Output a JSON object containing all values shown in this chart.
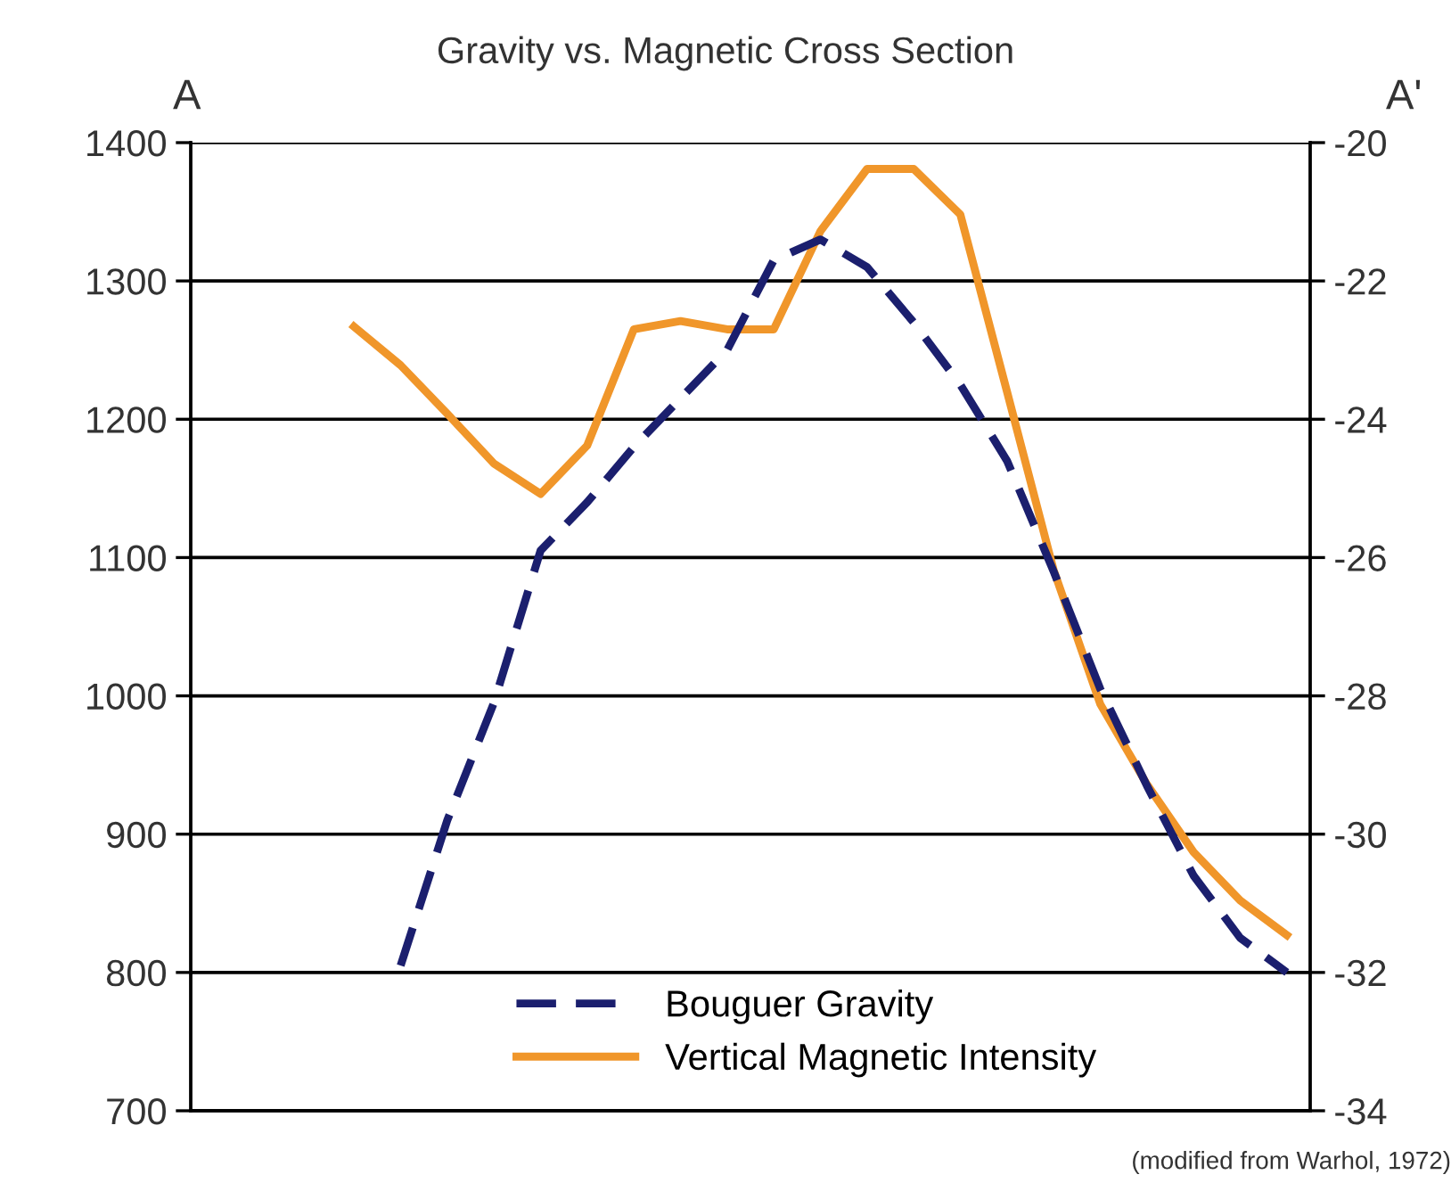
{
  "chart_data": {
    "type": "line",
    "title": "Gravity vs. Magnetic Cross Section",
    "categories": [
      null,
      null,
      null,
      null,
      null,
      null,
      null,
      null,
      null,
      null,
      null,
      null,
      null,
      null,
      null,
      null,
      null,
      null,
      null,
      null,
      null,
      null,
      null,
      null
    ],
    "series": [
      {
        "name": "Bouguer Gravity",
        "color": "#1b1f6e",
        "axis": "y2",
        "line_style": "dashed",
        "values": [
          null,
          null,
          null,
          null,
          -31.9,
          -29.8,
          -28.1,
          -25.9,
          -25.2,
          -24.4,
          -23.7,
          -23.0,
          -21.7,
          -21.4,
          -21.8,
          -22.6,
          -23.5,
          -24.6,
          -26.2,
          -27.9,
          -29.3,
          -30.6,
          -31.5,
          -32.0
        ]
      },
      {
        "name": "Vertical Magnetic Intensity",
        "color": "#f0962a",
        "axis": "y",
        "line_style": "solid",
        "values": [
          null,
          null,
          null,
          1267,
          1239,
          1204,
          1168,
          1146,
          1181,
          1265,
          1271,
          1265,
          1265,
          1336,
          1381,
          1381,
          1348,
          1220,
          1091,
          994,
          936,
          887,
          852,
          827
        ]
      }
    ],
    "ylim": [
      700,
      1400
    ],
    "yticks": [
      700,
      800,
      900,
      1000,
      1100,
      1200,
      1300,
      1400
    ],
    "y2lim": [
      -34,
      -20
    ],
    "y2ticks": [
      -34,
      -32,
      -30,
      -28,
      -26,
      -24,
      -22,
      -20
    ],
    "grid": "y",
    "legend": "bottom",
    "marker": "none",
    "annotations": [
      "A",
      "A'",
      "(modified from Warhol, 1972)"
    ]
  }
}
